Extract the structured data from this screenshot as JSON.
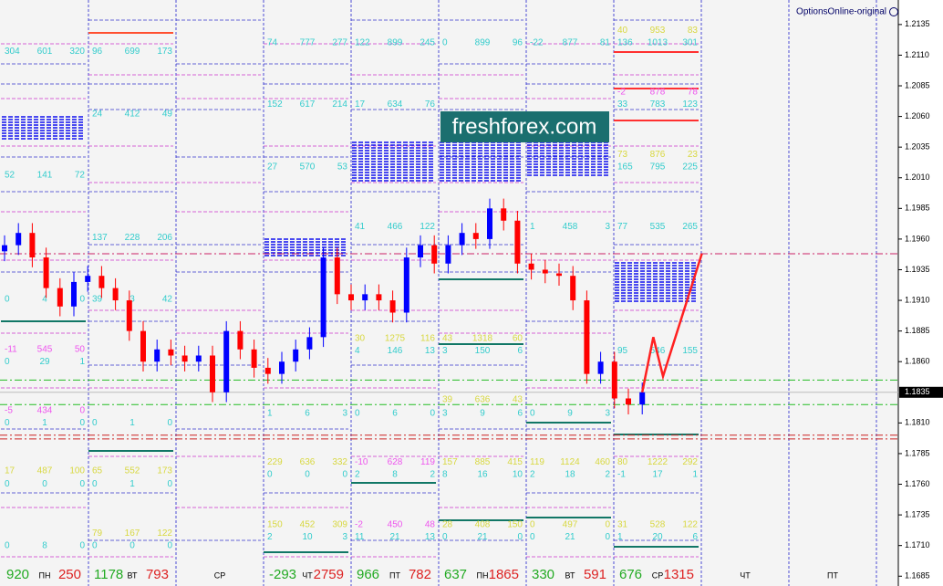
{
  "chart_data": {
    "type": "candlestick",
    "watermark": "OptionsOnline-original",
    "logo": "freshforex.com",
    "categories": [
      null,
      null,
      null,
      null,
      null,
      null,
      null,
      null,
      null,
      null,
      null,
      null,
      null,
      null,
      null,
      null,
      null,
      null,
      null,
      null,
      null,
      null,
      null,
      null,
      null,
      null,
      null,
      null,
      null,
      null,
      null,
      null,
      null,
      null,
      null,
      null,
      null,
      null,
      null,
      null,
      null,
      null,
      null,
      null,
      null,
      null,
      null
    ],
    "open": [
      1.195,
      1.1955,
      1.1965,
      1.1945,
      1.192,
      1.1905,
      1.1925,
      1.193,
      1.192,
      1.191,
      1.1885,
      1.186,
      1.187,
      1.1865,
      1.186,
      1.1865,
      1.1835,
      1.1885,
      1.187,
      1.1855,
      1.185,
      1.186,
      1.187,
      1.188,
      1.1945,
      1.1915,
      1.191,
      1.1915,
      1.191,
      1.19,
      1.1945,
      1.1955,
      1.194,
      1.1955,
      1.1965,
      1.196,
      1.1985,
      1.1975,
      1.194,
      1.1935,
      1.1932,
      1.193,
      1.191,
      1.185,
      1.186,
      1.183,
      1.1825
    ],
    "high": [
      1.1963,
      1.1973,
      1.1973,
      1.1953,
      1.1928,
      1.1933,
      1.1938,
      1.1938,
      1.1928,
      1.1918,
      1.1893,
      1.1878,
      1.1878,
      1.1873,
      1.1873,
      1.1873,
      1.1893,
      1.1893,
      1.1878,
      1.1863,
      1.1868,
      1.1878,
      1.1888,
      1.1953,
      1.1953,
      1.1923,
      1.1923,
      1.1923,
      1.1918,
      1.1953,
      1.1963,
      1.1963,
      1.1963,
      1.1973,
      1.1973,
      1.1993,
      1.1993,
      1.1983,
      1.1948,
      1.1943,
      1.194,
      1.1938,
      1.1918,
      1.1868,
      1.1868,
      1.1838,
      1.1843
    ],
    "low": [
      1.1942,
      1.1947,
      1.1937,
      1.1912,
      1.1897,
      1.1897,
      1.1917,
      1.1912,
      1.1902,
      1.1877,
      1.1852,
      1.1852,
      1.1857,
      1.1852,
      1.1852,
      1.1827,
      1.1827,
      1.1862,
      1.1847,
      1.1842,
      1.1842,
      1.1852,
      1.1862,
      1.1872,
      1.1907,
      1.1902,
      1.1902,
      1.1902,
      1.1892,
      1.1892,
      1.1937,
      1.1932,
      1.1932,
      1.1947,
      1.1952,
      1.1952,
      1.1967,
      1.1932,
      1.1927,
      1.1924,
      1.1922,
      1.1902,
      1.1842,
      1.1842,
      1.1822,
      1.1817,
      1.1817
    ],
    "close": [
      1.1955,
      1.1965,
      1.1945,
      1.192,
      1.1905,
      1.1925,
      1.193,
      1.192,
      1.191,
      1.1885,
      1.186,
      1.187,
      1.1865,
      1.186,
      1.1865,
      1.1835,
      1.1885,
      1.187,
      1.1855,
      1.185,
      1.186,
      1.187,
      1.188,
      1.1945,
      1.1915,
      1.191,
      1.1915,
      1.191,
      1.19,
      1.1945,
      1.1955,
      1.194,
      1.1955,
      1.1965,
      1.196,
      1.1985,
      1.1975,
      1.194,
      1.1935,
      1.1932,
      1.193,
      1.191,
      1.185,
      1.186,
      1.183,
      1.1825,
      1.1835
    ],
    "up_color": "#0000ff",
    "down_color": "#ff0000",
    "forecast": {
      "x": [
        46,
        46.8,
        47.5,
        50.3
      ],
      "values": [
        1.1835,
        1.188,
        1.1848,
        1.1948
      ],
      "color": "#ff2020"
    },
    "levels": [
      {
        "value": 1.1948,
        "color": "#cc2266"
      },
      {
        "value": 1.1845,
        "color": "#22bb22"
      },
      {
        "value": 1.1825,
        "color": "#22bb22"
      },
      {
        "value": 1.18,
        "color": "#cc2222"
      },
      {
        "value": 1.1797,
        "color": "#cc2222"
      }
    ],
    "current_price": 1.1835,
    "ylim": [
      1.1677,
      1.2155
    ],
    "yticks": [
      1.2135,
      {
        "value": 1.211,
        "label": "1.2110"
      },
      1.2085,
      {
        "value": 1.206,
        "label": "1.2060"
      },
      1.2035,
      {
        "value": 1.201,
        "label": "1.2010"
      },
      1.1985,
      {
        "value": 1.196,
        "label": "1.1960"
      },
      1.1935,
      {
        "value": 1.191,
        "label": "1.1910"
      },
      1.1885,
      {
        "value": 1.186,
        "label": "1.1860"
      },
      {
        "value": 1.181,
        "label": "1.1810"
      },
      1.1785,
      {
        "value": 1.176,
        "label": "1.1760"
      },
      1.1735,
      {
        "value": 1.171,
        "label": "1.1710"
      },
      1.1685
    ],
    "days": [
      {
        "label": "ПН",
        "calls": 920,
        "puts": 250
      },
      {
        "label": "ВТ",
        "calls": 1178,
        "puts": 793
      },
      {
        "label": "СР"
      },
      {
        "label": "ЧТ",
        "calls": -293,
        "puts": 2759
      },
      {
        "label": "ПТ",
        "calls": 966,
        "puts": 782
      },
      {
        "label": "ПН",
        "calls": 637,
        "puts": 1865
      },
      {
        "label": "ВТ",
        "calls": 330,
        "puts": 591
      },
      {
        "label": "СР",
        "calls": 676,
        "puts": 1315
      },
      {
        "label": "ЧТ"
      },
      {
        "label": "ПТ"
      }
    ],
    "option_columns": [
      [
        {
          "level": 1.2113,
          "color": "#33cccc",
          "values": [
            304,
            601,
            320
          ]
        },
        {
          "level": 1.2012,
          "color": "#33cccc",
          "values": [
            52,
            141,
            72
          ]
        },
        {
          "level": 1.1911,
          "color": "#33cccc",
          "values": [
            0,
            4,
            0
          ]
        },
        {
          "level": 1.187,
          "color": "#ee55ee",
          "values": [
            -11,
            545,
            50
          ]
        },
        {
          "level": 1.186,
          "color": "#33cccc",
          "values": [
            0,
            29,
            1
          ]
        },
        {
          "level": 1.182,
          "color": "#ee55ee",
          "values": [
            -5,
            434,
            0
          ]
        },
        {
          "level": 1.181,
          "color": "#33cccc",
          "values": [
            0,
            1,
            0
          ]
        },
        {
          "level": 1.1771,
          "color": "#d8d840",
          "values": [
            17,
            487,
            100
          ]
        },
        {
          "level": 1.176,
          "color": "#33cccc",
          "values": [
            0,
            0,
            0
          ]
        },
        {
          "level": 1.171,
          "color": "#33cccc",
          "values": [
            0,
            8,
            0
          ]
        }
      ],
      [
        {
          "level": 1.2113,
          "color": "#33cccc",
          "values": [
            96,
            699,
            173
          ]
        },
        {
          "level": 1.2062,
          "color": "#33cccc",
          "values": [
            24,
            412,
            49
          ]
        },
        {
          "level": 1.1961,
          "color": "#33cccc",
          "values": [
            137,
            228,
            206
          ]
        },
        {
          "level": 1.1911,
          "color": "#33cccc",
          "values": [
            39,
            3,
            42
          ]
        },
        {
          "level": 1.181,
          "color": "#33cccc",
          "values": [
            0,
            1,
            0
          ]
        },
        {
          "level": 1.1771,
          "color": "#d8d840",
          "values": [
            65,
            552,
            173
          ]
        },
        {
          "level": 1.176,
          "color": "#33cccc",
          "values": [
            0,
            1,
            0
          ]
        },
        {
          "level": 1.172,
          "color": "#d8d840",
          "values": [
            79,
            167,
            122
          ]
        },
        {
          "level": 1.171,
          "color": "#33cccc",
          "values": [
            0,
            0,
            0
          ]
        }
      ],
      [],
      [
        {
          "level": 1.212,
          "color": "#33cccc",
          "values": [
            74,
            777,
            277
          ]
        },
        {
          "level": 1.207,
          "color": "#33cccc",
          "values": [
            152,
            617,
            214
          ]
        },
        {
          "level": 1.2019,
          "color": "#33cccc",
          "values": [
            27,
            570,
            53
          ]
        },
        {
          "level": 1.1818,
          "color": "#33cccc",
          "values": [
            1,
            6,
            3
          ]
        },
        {
          "level": 1.1778,
          "color": "#d8d840",
          "values": [
            229,
            636,
            332
          ]
        },
        {
          "level": 1.1768,
          "color": "#33cccc",
          "values": [
            0,
            0,
            0
          ]
        },
        {
          "level": 1.1727,
          "color": "#d8d840",
          "values": [
            150,
            452,
            309
          ]
        },
        {
          "level": 1.1717,
          "color": "#33cccc",
          "values": [
            2,
            10,
            3
          ]
        }
      ],
      [
        {
          "level": 1.212,
          "color": "#33cccc",
          "values": [
            122,
            899,
            245
          ]
        },
        {
          "level": 1.207,
          "color": "#33cccc",
          "values": [
            17,
            634,
            76
          ]
        },
        {
          "level": 1.197,
          "color": "#33cccc",
          "values": [
            41,
            466,
            122
          ]
        },
        {
          "level": 1.1879,
          "color": "#d8d840",
          "values": [
            30,
            1275,
            116
          ]
        },
        {
          "level": 1.1869,
          "color": "#33cccc",
          "values": [
            4,
            146,
            13
          ]
        },
        {
          "level": 1.1818,
          "color": "#33cccc",
          "values": [
            0,
            6,
            0
          ]
        },
        {
          "level": 1.1778,
          "color": "#ee55ee",
          "values": [
            -10,
            628,
            119
          ]
        },
        {
          "level": 1.1768,
          "color": "#33cccc",
          "values": [
            2,
            8,
            2
          ]
        },
        {
          "level": 1.1727,
          "color": "#ee55ee",
          "values": [
            -2,
            450,
            48
          ]
        },
        {
          "level": 1.1717,
          "color": "#33cccc",
          "values": [
            11,
            21,
            13
          ]
        }
      ],
      [
        {
          "level": 1.212,
          "color": "#33cccc",
          "values": [
            0,
            899,
            96
          ]
        },
        {
          "level": 1.1879,
          "color": "#d8d840",
          "values": [
            43,
            1318,
            60
          ]
        },
        {
          "level": 1.1869,
          "color": "#33cccc",
          "values": [
            3,
            150,
            6
          ]
        },
        {
          "level": 1.1829,
          "color": "#d8d840",
          "values": [
            39,
            636,
            43
          ]
        },
        {
          "level": 1.1818,
          "color": "#33cccc",
          "values": [
            3,
            9,
            6
          ]
        },
        {
          "level": 1.1778,
          "color": "#d8d840",
          "values": [
            157,
            885,
            415
          ]
        },
        {
          "level": 1.1768,
          "color": "#33cccc",
          "values": [
            8,
            16,
            10
          ]
        },
        {
          "level": 1.1727,
          "color": "#d8d840",
          "values": [
            28,
            408,
            150
          ]
        },
        {
          "level": 1.1717,
          "color": "#33cccc",
          "values": [
            0,
            21,
            0
          ]
        }
      ],
      [
        {
          "level": 1.212,
          "color": "#33cccc",
          "values": [
            -22,
            877,
            81
          ]
        },
        {
          "level": 1.197,
          "color": "#33cccc",
          "values": [
            1,
            458,
            3
          ]
        },
        {
          "level": 1.1818,
          "color": "#33cccc",
          "values": [
            0,
            9,
            3
          ]
        },
        {
          "level": 1.1778,
          "color": "#d8d840",
          "values": [
            119,
            1124,
            460
          ]
        },
        {
          "level": 1.1768,
          "color": "#33cccc",
          "values": [
            2,
            18,
            2
          ]
        },
        {
          "level": 1.1727,
          "color": "#d8d840",
          "values": [
            0,
            497,
            0
          ]
        },
        {
          "level": 1.1717,
          "color": "#33cccc",
          "values": [
            0,
            21,
            0
          ]
        }
      ],
      [
        {
          "level": 1.213,
          "color": "#d8d840",
          "values": [
            40,
            953,
            83
          ]
        },
        {
          "level": 1.212,
          "color": "#33cccc",
          "values": [
            136,
            1013,
            301
          ]
        },
        {
          "level": 1.208,
          "color": "#ee55ee",
          "values": [
            -2,
            878,
            78
          ]
        },
        {
          "level": 1.207,
          "color": "#33cccc",
          "values": [
            33,
            783,
            123
          ]
        },
        {
          "level": 1.2029,
          "color": "#d8d840",
          "values": [
            73,
            876,
            23
          ]
        },
        {
          "level": 1.2019,
          "color": "#33cccc",
          "values": [
            165,
            795,
            225
          ]
        },
        {
          "level": 1.197,
          "color": "#33cccc",
          "values": [
            77,
            535,
            265
          ]
        },
        {
          "level": 1.1869,
          "color": "#33cccc",
          "values": [
            95,
            546,
            155
          ]
        },
        {
          "level": 1.1778,
          "color": "#d8d840",
          "values": [
            80,
            1222,
            292
          ]
        },
        {
          "level": 1.1768,
          "color": "#33cccc",
          "values": [
            -1,
            17,
            1
          ]
        },
        {
          "level": 1.1727,
          "color": "#d8d840",
          "values": [
            31,
            528,
            122
          ]
        },
        {
          "level": 1.1717,
          "color": "#33cccc",
          "values": [
            1,
            20,
            6
          ]
        }
      ],
      [],
      []
    ]
  }
}
